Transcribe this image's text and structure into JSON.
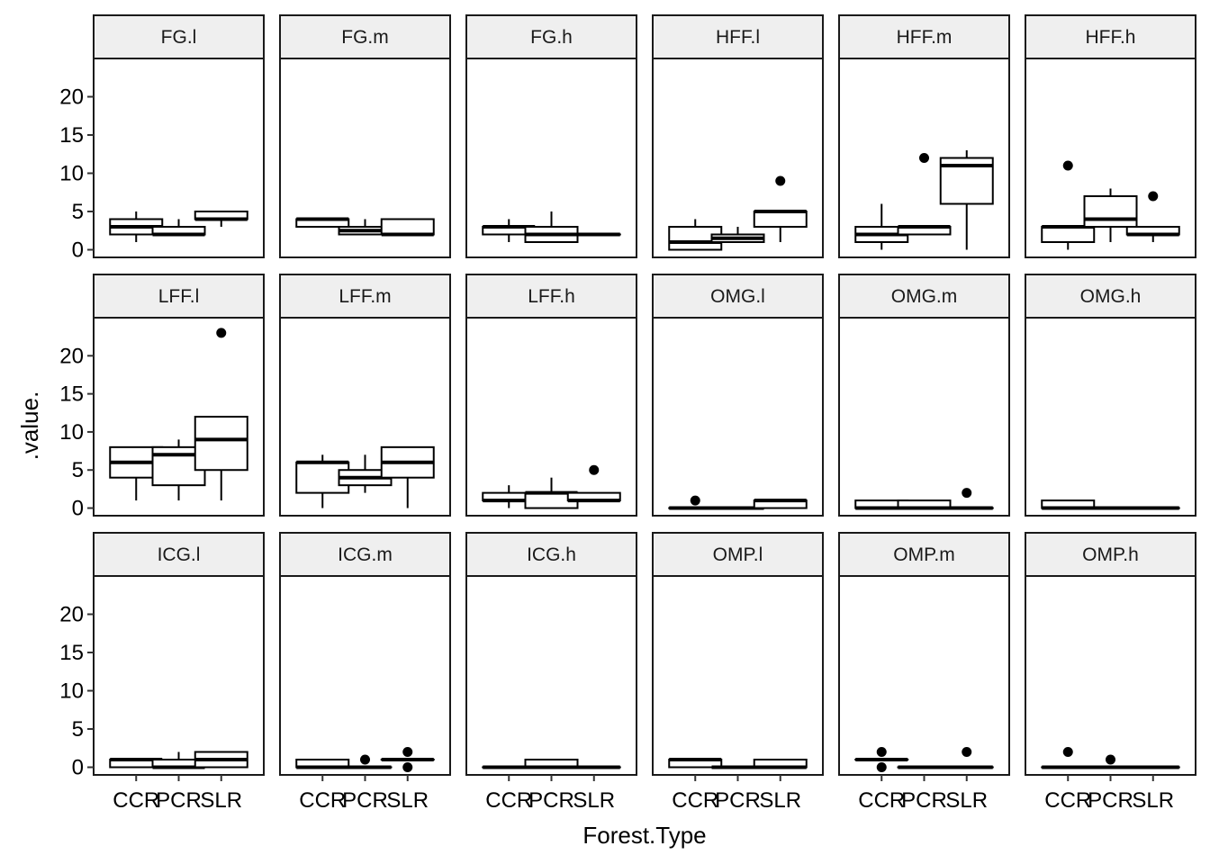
{
  "chart_data": {
    "type": "boxplot",
    "xlabel": "Forest.Type",
    "ylabel": ".value.",
    "categories": [
      "CCR",
      "PCR",
      "SLR"
    ],
    "y_ticks": [
      0,
      5,
      10,
      15,
      20
    ],
    "ylim": [
      -1,
      25
    ],
    "layout": "facet grid, 3 rows x 6 columns",
    "grid": false,
    "legend": "none",
    "panels": [
      {
        "label": "FG.l",
        "boxes": [
          {
            "category": "CCR",
            "q1": 2,
            "median": 3,
            "q3": 4,
            "whisker_low": 1,
            "whisker_high": 5,
            "outliers": []
          },
          {
            "category": "PCR",
            "q1": 2,
            "median": 2,
            "q3": 3,
            "whisker_low": 2,
            "whisker_high": 4,
            "outliers": []
          },
          {
            "category": "SLR",
            "q1": 4,
            "median": 4,
            "q3": 5,
            "whisker_low": 3,
            "whisker_high": 5,
            "outliers": []
          }
        ]
      },
      {
        "label": "FG.m",
        "boxes": [
          {
            "category": "CCR",
            "q1": 3,
            "median": 4,
            "q3": 4,
            "whisker_low": 3,
            "whisker_high": 4,
            "outliers": []
          },
          {
            "category": "PCR",
            "q1": 2,
            "median": 2.5,
            "q3": 3,
            "whisker_low": 2,
            "whisker_high": 4,
            "outliers": []
          },
          {
            "category": "SLR",
            "q1": 2,
            "median": 2,
            "q3": 4,
            "whisker_low": 2,
            "whisker_high": 4,
            "outliers": []
          }
        ]
      },
      {
        "label": "FG.h",
        "boxes": [
          {
            "category": "CCR",
            "q1": 2,
            "median": 3,
            "q3": 3,
            "whisker_low": 1,
            "whisker_high": 4,
            "outliers": []
          },
          {
            "category": "PCR",
            "q1": 1,
            "median": 2,
            "q3": 3,
            "whisker_low": 1,
            "whisker_high": 5,
            "outliers": []
          },
          {
            "category": "SLR",
            "q1": 2,
            "median": 2,
            "q3": 2,
            "whisker_low": 2,
            "whisker_high": 2,
            "outliers": []
          }
        ]
      },
      {
        "label": "HFF.l",
        "boxes": [
          {
            "category": "CCR",
            "q1": 0,
            "median": 1,
            "q3": 3,
            "whisker_low": 0,
            "whisker_high": 4,
            "outliers": []
          },
          {
            "category": "PCR",
            "q1": 1,
            "median": 1.5,
            "q3": 2,
            "whisker_low": 1,
            "whisker_high": 3,
            "outliers": []
          },
          {
            "category": "SLR",
            "q1": 3,
            "median": 5,
            "q3": 5,
            "whisker_low": 1,
            "whisker_high": 5,
            "outliers": [
              9
            ]
          }
        ]
      },
      {
        "label": "HFF.m",
        "boxes": [
          {
            "category": "CCR",
            "q1": 1,
            "median": 2,
            "q3": 3,
            "whisker_low": 0,
            "whisker_high": 6,
            "outliers": []
          },
          {
            "category": "PCR",
            "q1": 2,
            "median": 3,
            "q3": 3,
            "whisker_low": 2,
            "whisker_high": 3,
            "outliers": [
              12
            ]
          },
          {
            "category": "SLR",
            "q1": 6,
            "median": 11,
            "q3": 12,
            "whisker_low": 0,
            "whisker_high": 13,
            "outliers": []
          }
        ]
      },
      {
        "label": "HFF.h",
        "boxes": [
          {
            "category": "CCR",
            "q1": 1,
            "median": 3,
            "q3": 3,
            "whisker_low": 0,
            "whisker_high": 3,
            "outliers": [
              11
            ]
          },
          {
            "category": "PCR",
            "q1": 3,
            "median": 4,
            "q3": 7,
            "whisker_low": 1,
            "whisker_high": 8,
            "outliers": []
          },
          {
            "category": "SLR",
            "q1": 2,
            "median": 2,
            "q3": 3,
            "whisker_low": 1,
            "whisker_high": 3,
            "outliers": [
              7
            ]
          }
        ]
      },
      {
        "label": "LFF.l",
        "boxes": [
          {
            "category": "CCR",
            "q1": 4,
            "median": 6,
            "q3": 8,
            "whisker_low": 1,
            "whisker_high": 8,
            "outliers": []
          },
          {
            "category": "PCR",
            "q1": 3,
            "median": 7,
            "q3": 8,
            "whisker_low": 1,
            "whisker_high": 9,
            "outliers": []
          },
          {
            "category": "SLR",
            "q1": 5,
            "median": 9,
            "q3": 12,
            "whisker_low": 1,
            "whisker_high": 12,
            "outliers": [
              23
            ]
          }
        ]
      },
      {
        "label": "LFF.m",
        "boxes": [
          {
            "category": "CCR",
            "q1": 2,
            "median": 6,
            "q3": 6,
            "whisker_low": 0,
            "whisker_high": 7,
            "outliers": []
          },
          {
            "category": "PCR",
            "q1": 3,
            "median": 4,
            "q3": 5,
            "whisker_low": 2,
            "whisker_high": 7,
            "outliers": []
          },
          {
            "category": "SLR",
            "q1": 4,
            "median": 6,
            "q3": 8,
            "whisker_low": 0,
            "whisker_high": 8,
            "outliers": []
          }
        ]
      },
      {
        "label": "LFF.h",
        "boxes": [
          {
            "category": "CCR",
            "q1": 1,
            "median": 1,
            "q3": 2,
            "whisker_low": 0,
            "whisker_high": 3,
            "outliers": []
          },
          {
            "category": "PCR",
            "q1": 0,
            "median": 2,
            "q3": 2,
            "whisker_low": 0,
            "whisker_high": 4,
            "outliers": []
          },
          {
            "category": "SLR",
            "q1": 1,
            "median": 1,
            "q3": 2,
            "whisker_low": 1,
            "whisker_high": 2,
            "outliers": [
              5
            ]
          }
        ]
      },
      {
        "label": "OMG.l",
        "boxes": [
          {
            "category": "CCR",
            "q1": 0,
            "median": 0,
            "q3": 0,
            "whisker_low": 0,
            "whisker_high": 0,
            "outliers": [
              1
            ]
          },
          {
            "category": "PCR",
            "q1": 0,
            "median": 0,
            "q3": 0,
            "whisker_low": 0,
            "whisker_high": 0,
            "outliers": []
          },
          {
            "category": "SLR",
            "q1": 0,
            "median": 1,
            "q3": 1,
            "whisker_low": 0,
            "whisker_high": 1,
            "outliers": []
          }
        ]
      },
      {
        "label": "OMG.m",
        "boxes": [
          {
            "category": "CCR",
            "q1": 0,
            "median": 0,
            "q3": 1,
            "whisker_low": 0,
            "whisker_high": 1,
            "outliers": []
          },
          {
            "category": "PCR",
            "q1": 0,
            "median": 0,
            "q3": 1,
            "whisker_low": 0,
            "whisker_high": 1,
            "outliers": []
          },
          {
            "category": "SLR",
            "q1": 0,
            "median": 0,
            "q3": 0,
            "whisker_low": 0,
            "whisker_high": 0,
            "outliers": [
              2
            ]
          }
        ]
      },
      {
        "label": "OMG.h",
        "boxes": [
          {
            "category": "CCR",
            "q1": 0,
            "median": 0,
            "q3": 1,
            "whisker_low": 0,
            "whisker_high": 1,
            "outliers": []
          },
          {
            "category": "PCR",
            "q1": 0,
            "median": 0,
            "q3": 0,
            "whisker_low": 0,
            "whisker_high": 0,
            "outliers": []
          },
          {
            "category": "SLR",
            "q1": 0,
            "median": 0,
            "q3": 0,
            "whisker_low": 0,
            "whisker_high": 0,
            "outliers": []
          }
        ]
      },
      {
        "label": "ICG.l",
        "boxes": [
          {
            "category": "CCR",
            "q1": 0,
            "median": 1,
            "q3": 1,
            "whisker_low": 0,
            "whisker_high": 1,
            "outliers": []
          },
          {
            "category": "PCR",
            "q1": 0,
            "median": 0,
            "q3": 1,
            "whisker_low": 0,
            "whisker_high": 2,
            "outliers": []
          },
          {
            "category": "SLR",
            "q1": 0,
            "median": 1,
            "q3": 2,
            "whisker_low": 0,
            "whisker_high": 2,
            "outliers": []
          }
        ]
      },
      {
        "label": "ICG.m",
        "boxes": [
          {
            "category": "CCR",
            "q1": 0,
            "median": 0,
            "q3": 1,
            "whisker_low": 0,
            "whisker_high": 1,
            "outliers": []
          },
          {
            "category": "PCR",
            "q1": 0,
            "median": 0,
            "q3": 0,
            "whisker_low": 0,
            "whisker_high": 0,
            "outliers": [
              1
            ]
          },
          {
            "category": "SLR",
            "q1": 1,
            "median": 1,
            "q3": 1,
            "whisker_low": 1,
            "whisker_high": 1,
            "outliers": [
              2,
              0
            ]
          }
        ]
      },
      {
        "label": "ICG.h",
        "boxes": [
          {
            "category": "CCR",
            "q1": 0,
            "median": 0,
            "q3": 0,
            "whisker_low": 0,
            "whisker_high": 0,
            "outliers": []
          },
          {
            "category": "PCR",
            "q1": 0,
            "median": 0,
            "q3": 1,
            "whisker_low": 0,
            "whisker_high": 1,
            "outliers": []
          },
          {
            "category": "SLR",
            "q1": 0,
            "median": 0,
            "q3": 0,
            "whisker_low": 0,
            "whisker_high": 0,
            "outliers": []
          }
        ]
      },
      {
        "label": "OMP.l",
        "boxes": [
          {
            "category": "CCR",
            "q1": 0,
            "median": 1,
            "q3": 1,
            "whisker_low": 0,
            "whisker_high": 1,
            "outliers": []
          },
          {
            "category": "PCR",
            "q1": 0,
            "median": 0,
            "q3": 0,
            "whisker_low": 0,
            "whisker_high": 0,
            "outliers": []
          },
          {
            "category": "SLR",
            "q1": 0,
            "median": 0,
            "q3": 1,
            "whisker_low": 0,
            "whisker_high": 1,
            "outliers": []
          }
        ]
      },
      {
        "label": "OMP.m",
        "boxes": [
          {
            "category": "CCR",
            "q1": 1,
            "median": 1,
            "q3": 1,
            "whisker_low": 1,
            "whisker_high": 1,
            "outliers": [
              2,
              0
            ]
          },
          {
            "category": "PCR",
            "q1": 0,
            "median": 0,
            "q3": 0,
            "whisker_low": 0,
            "whisker_high": 0,
            "outliers": []
          },
          {
            "category": "SLR",
            "q1": 0,
            "median": 0,
            "q3": 0,
            "whisker_low": 0,
            "whisker_high": 0,
            "outliers": [
              2
            ]
          }
        ]
      },
      {
        "label": "OMP.h",
        "boxes": [
          {
            "category": "CCR",
            "q1": 0,
            "median": 0,
            "q3": 0,
            "whisker_low": 0,
            "whisker_high": 0,
            "outliers": [
              2
            ]
          },
          {
            "category": "PCR",
            "q1": 0,
            "median": 0,
            "q3": 0,
            "whisker_low": 0,
            "whisker_high": 0,
            "outliers": [
              1
            ]
          },
          {
            "category": "SLR",
            "q1": 0,
            "median": 0,
            "q3": 0,
            "whisker_low": 0,
            "whisker_high": 0,
            "outliers": []
          }
        ]
      }
    ]
  }
}
